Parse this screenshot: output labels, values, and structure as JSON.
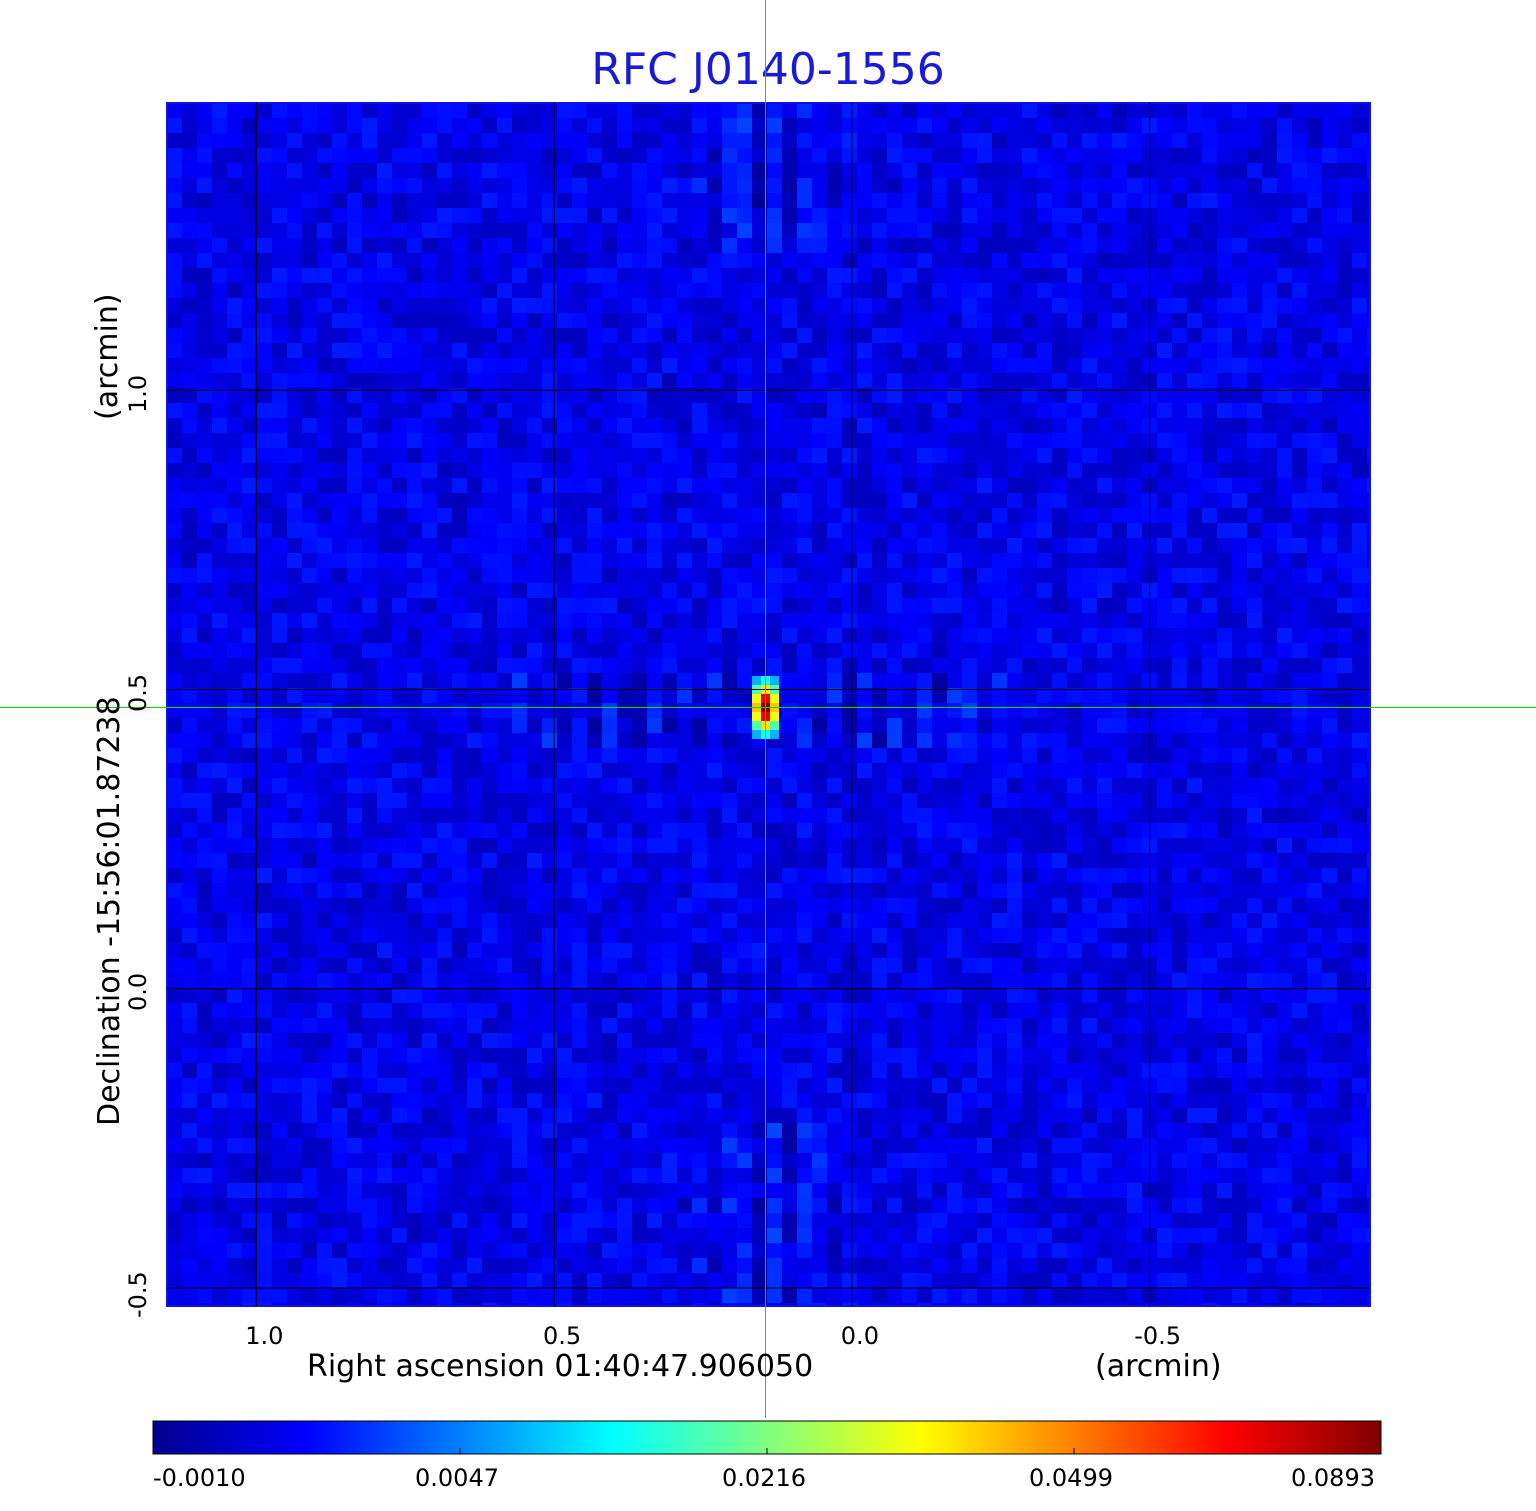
{
  "chart_data": {
    "type": "heatmap",
    "title": "RFC J0140-1556",
    "xlabel": "Right ascension  01:40:47.906050",
    "x_unit": "(arcmin)",
    "ylabel": "Declination  -15:56:01.87238",
    "y_unit": "(arcmin)",
    "xlim": [
      1.15,
      -0.87
    ],
    "ylim": [
      -0.53,
      1.48
    ],
    "x_ticks": [
      1.0,
      0.5,
      0.0,
      -0.5
    ],
    "x_tick_labels": [
      "1.0",
      "0.5",
      "0.0",
      "-0.5"
    ],
    "y_ticks": [
      -0.5,
      0.0,
      0.5,
      1.0
    ],
    "y_tick_labels": [
      "-0.5",
      "0.0",
      "0.5",
      "1.0"
    ],
    "grid": true,
    "colormap": "jet",
    "colorbar": {
      "placement": "bottom",
      "range": [
        -0.001,
        0.0893
      ],
      "ticks": [
        -0.001,
        0.0047,
        0.0216,
        0.0499,
        0.0893
      ],
      "tick_labels": [
        "-0.0010",
        "0.0047",
        "0.0216",
        "0.0499",
        "0.0893"
      ]
    },
    "peak": {
      "x": 0.145,
      "y": 0.47,
      "value": 0.0893
    },
    "crosshair": {
      "x": 0.145,
      "y": 0.47,
      "color": "#00dd00"
    }
  }
}
